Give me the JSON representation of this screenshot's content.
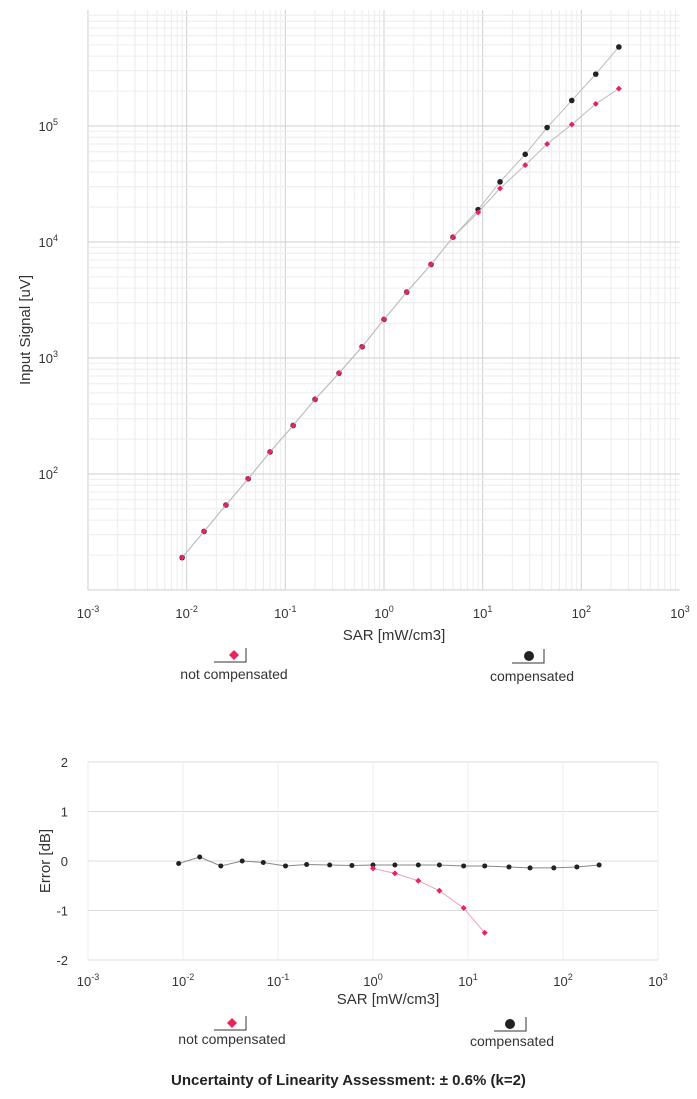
{
  "chart_data": [
    {
      "type": "scatter",
      "xlabel": "SAR [mW/cm3]",
      "ylabel": "Input Signal [uV]",
      "xscale": "log",
      "yscale": "log",
      "xlim": [
        0.001,
        1000
      ],
      "ylim": [
        10,
        1000000
      ],
      "xtick_exponents": [
        -3,
        -2,
        -1,
        0,
        1,
        2,
        3
      ],
      "ytick_exponents": [
        2,
        3,
        4,
        5
      ],
      "grid": true,
      "legend": [
        {
          "label": "not compensated",
          "marker": "diamond",
          "color": "#e8245a"
        },
        {
          "label": "compensated",
          "marker": "circle",
          "color": "#222222"
        }
      ],
      "series": [
        {
          "name": "compensated",
          "color": "#222222",
          "x": [
            0.009,
            0.015,
            0.025,
            0.042,
            0.07,
            0.12,
            0.2,
            0.35,
            0.6,
            1.0,
            1.7,
            3.0,
            5.0,
            9.0,
            15.0,
            27.0,
            45.0,
            80.0,
            140.0,
            240.0
          ],
          "y": [
            19,
            32,
            54,
            91,
            155,
            262,
            440,
            740,
            1250,
            2150,
            3700,
            6400,
            11000,
            19000,
            33000,
            57000,
            97000,
            166000,
            280000,
            480000
          ]
        },
        {
          "name": "not compensated",
          "color": "#e8245a",
          "x": [
            0.009,
            0.015,
            0.025,
            0.042,
            0.07,
            0.12,
            0.2,
            0.35,
            0.6,
            1.0,
            1.7,
            3.0,
            5.0,
            9.0,
            15.0,
            27.0,
            45.0,
            80.0,
            140.0,
            240.0
          ],
          "y": [
            19,
            32,
            54,
            91,
            155,
            262,
            440,
            740,
            1250,
            2150,
            3700,
            6400,
            11000,
            18000,
            29000,
            46000,
            70000,
            103000,
            155000,
            210000
          ]
        }
      ]
    },
    {
      "type": "line",
      "xlabel": "SAR [mW/cm3]",
      "ylabel": "Error [dB]",
      "xscale": "log",
      "xlim": [
        0.001,
        1000
      ],
      "ylim": [
        -2,
        2
      ],
      "xtick_exponents": [
        -3,
        -2,
        -1,
        0,
        1,
        2,
        3
      ],
      "yticks": [
        -2,
        -1,
        0,
        1,
        2
      ],
      "grid": true,
      "legend": [
        {
          "label": "not compensated",
          "marker": "diamond",
          "color": "#e8245a"
        },
        {
          "label": "compensated",
          "marker": "circle",
          "color": "#222222"
        }
      ],
      "series": [
        {
          "name": "compensated",
          "color": "#222222",
          "x": [
            0.009,
            0.015,
            0.025,
            0.042,
            0.07,
            0.12,
            0.2,
            0.35,
            0.6,
            1.0,
            1.7,
            3.0,
            5.0,
            9.0,
            15.0,
            27.0,
            45.0,
            80.0,
            140.0,
            240.0
          ],
          "y": [
            -0.05,
            0.08,
            -0.1,
            0.0,
            -0.03,
            -0.1,
            -0.07,
            -0.08,
            -0.09,
            -0.08,
            -0.08,
            -0.08,
            -0.08,
            -0.1,
            -0.1,
            -0.12,
            -0.14,
            -0.14,
            -0.12,
            -0.08
          ]
        },
        {
          "name": "not compensated",
          "color": "#e8245a",
          "x": [
            1.0,
            1.7,
            3.0,
            5.0,
            9.0,
            15.0
          ],
          "y": [
            -0.15,
            -0.25,
            -0.4,
            -0.6,
            -0.95,
            -1.45
          ]
        }
      ]
    }
  ],
  "footer": {
    "text": "Uncertainty of Linearity Assessment: ± 0.6% (k=2)"
  }
}
